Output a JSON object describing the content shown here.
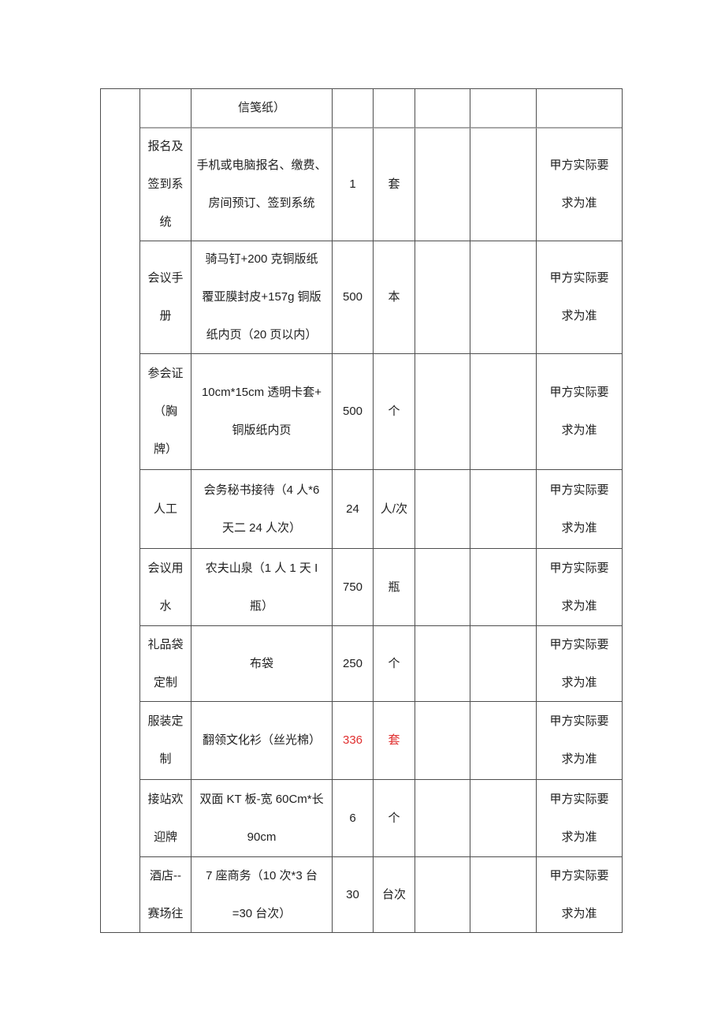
{
  "page": {
    "background": "#ffffff"
  },
  "colors": {
    "highlight_red": "#e02f2f",
    "text": "#1f1f1f",
    "border": "#4e4e4e",
    "pagebreak_divider": "#a8a8a8"
  },
  "table": {
    "columns": [
      "serial",
      "item",
      "spec",
      "qty",
      "unit",
      "empty-1",
      "empty-2",
      "note"
    ],
    "rows": [
      {
        "desc": "信笺纸）"
      },
      {
        "item": "报名及\n签到系\n统",
        "desc": "手机或电脑报名、缴费、\n房间预订、签到系统",
        "qty": "1",
        "unit": "套",
        "note": "甲方实际要\n求为准"
      },
      {
        "item": "会议手\n册",
        "desc": "骑马钉+200 克铜版纸\n覆亚膜封皮+157g 铜版\n纸内页（20 页以内）",
        "qty": "500",
        "unit": "本",
        "note": "甲方实际要\n求为准"
      },
      {
        "item": "参会证\n（胸\n牌）",
        "desc": "10cm*15cm 透明卡套+\n铜版纸内页",
        "qty": "500",
        "unit": "个",
        "note": "甲方实际要\n求为准"
      },
      {
        "item": "人工",
        "desc": "会务秘书接待（4 人*6\n天二 24 人次）",
        "qty": "24",
        "unit": "人/次",
        "note": "甲方实际要\n求为准"
      },
      {
        "item": "会议用\n水",
        "desc": "农夫山泉（1 人 1 天 I\n瓶）",
        "qty": "750",
        "unit": "瓶",
        "note": "甲方实际要\n求为准"
      },
      {
        "item": "礼品袋\n定制",
        "desc": "布袋",
        "qty": "250",
        "unit": "个",
        "note": "甲方实际要\n求为准"
      },
      {
        "item": "服装定\n制",
        "desc": "翻领文化衫（丝光棉）",
        "qty": "336",
        "unit": "套",
        "highlight": true,
        "note": "甲方实际要\n求为准"
      },
      {
        "item": "接站欢\n迎牌",
        "desc": "双面 KT 板-宽 60Cm*长\n90cm",
        "qty": "6",
        "unit": "个",
        "note": "甲方实际要\n求为准"
      },
      {
        "item": "酒店--\n赛场往",
        "desc": "7 座商务（10 次*3 台\n=30 台次）",
        "qty": "30",
        "unit": "台次",
        "note": "甲方实际要\n求为准"
      }
    ]
  }
}
